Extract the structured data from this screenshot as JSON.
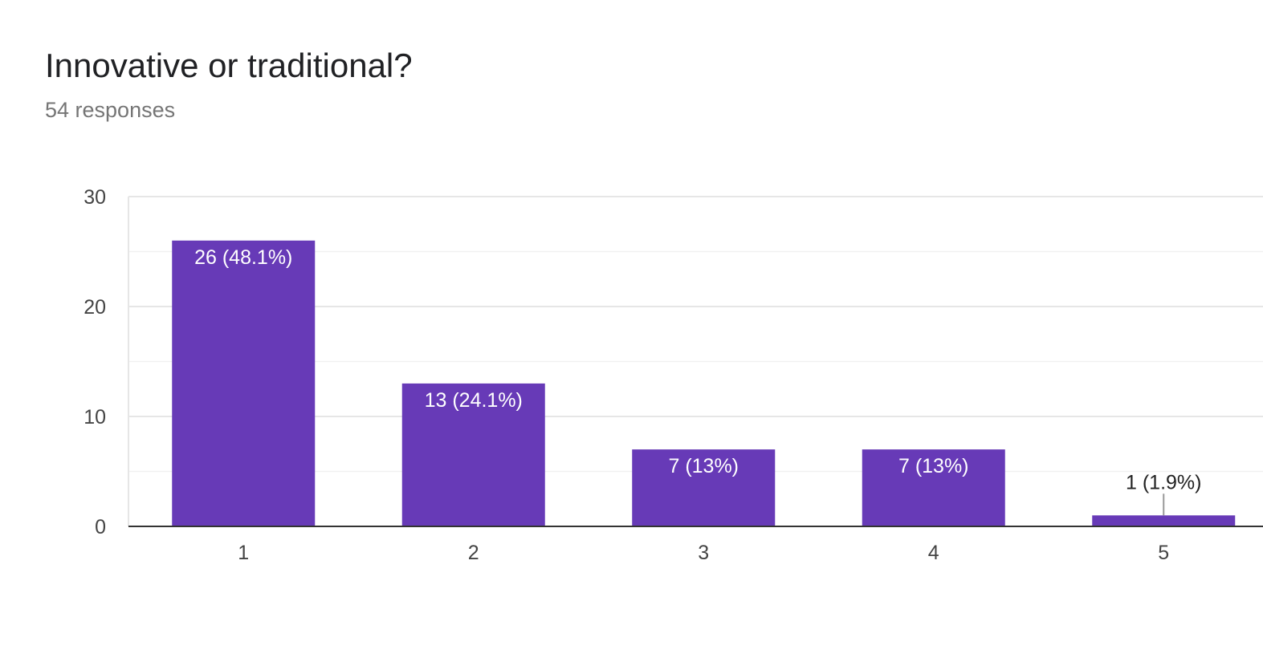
{
  "question": {
    "title": "Innovative or traditional?",
    "responses_label": "54 responses"
  },
  "colors": {
    "bar": "#673AB7",
    "grid": "#E6E6E6",
    "axis": "#333333",
    "label_inside": "#FFFFFF",
    "label_outside": "#222222",
    "tick": "#444444"
  },
  "chart_data": {
    "type": "bar",
    "categories": [
      "1",
      "2",
      "3",
      "4",
      "5"
    ],
    "values": [
      26,
      13,
      7,
      7,
      1
    ],
    "data_labels": [
      "26 (48.1%)",
      "13 (24.1%)",
      "7 (13%)",
      "7 (13%)",
      "1 (1.9%)"
    ],
    "ylim": [
      0,
      30
    ],
    "yticks": [
      0,
      10,
      20,
      30
    ],
    "grid": true,
    "legend": "none"
  }
}
